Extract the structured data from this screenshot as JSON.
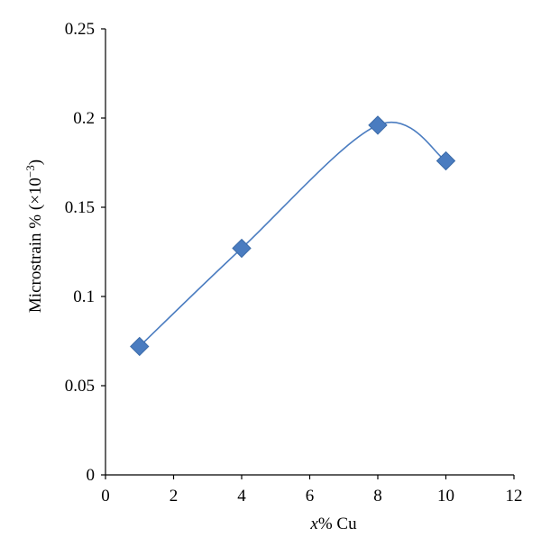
{
  "chart_data": {
    "type": "scatter",
    "title": "",
    "xlabel_italic": "x",
    "xlabel_rest": "% Cu",
    "ylabel_main": "Microstrain % (×10",
    "ylabel_sup": "−3",
    "ylabel_close": ")",
    "xlim": [
      0,
      12
    ],
    "ylim": [
      0,
      0.25
    ],
    "xticks": [
      "0",
      "2",
      "4",
      "6",
      "8",
      "10",
      "12"
    ],
    "yticks": [
      "0",
      "0.05",
      "0.1",
      "0.15",
      "0.2",
      "0.25"
    ],
    "grid": false,
    "legend": "none",
    "smooth_line": true,
    "marker": "diamond",
    "color": "#4a7cc0",
    "series": [
      {
        "x": [
          1,
          4,
          8,
          10
        ],
        "y": [
          0.072,
          0.127,
          0.196,
          0.176
        ]
      }
    ]
  }
}
